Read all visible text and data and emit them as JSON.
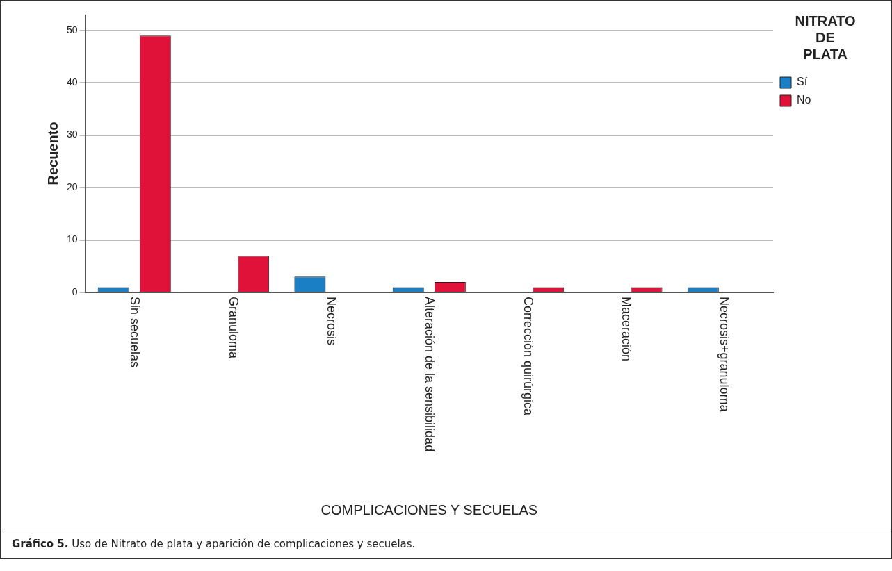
{
  "chart_data": {
    "type": "bar",
    "xlabel": "COMPLICACIONES Y SECUELAS",
    "ylabel": "Recuento",
    "legend_title": "NITRATO DE PLATA",
    "categories": [
      "Sin secuelas",
      "Granuloma",
      "Necrosis",
      "Alteración de la sensibilidad",
      "Corrección quirúrgica",
      "Maceración",
      "Necrosis+granuloma"
    ],
    "series": [
      {
        "name": "Sí",
        "color": "#1a7fc4",
        "values": [
          1,
          null,
          3,
          1,
          null,
          null,
          1
        ]
      },
      {
        "name": "No",
        "color": "#e0123a",
        "values": [
          49,
          7,
          null,
          2,
          1,
          1,
          null
        ]
      }
    ],
    "ylim": [
      0,
      53
    ],
    "yticks": [
      0,
      10,
      20,
      30,
      40,
      50
    ],
    "grid": "y",
    "legend": "top right",
    "annotations": [
      "Gráfico 5. Uso de Nitrato de plata y aparición de complicaciones y secuelas."
    ]
  }
}
